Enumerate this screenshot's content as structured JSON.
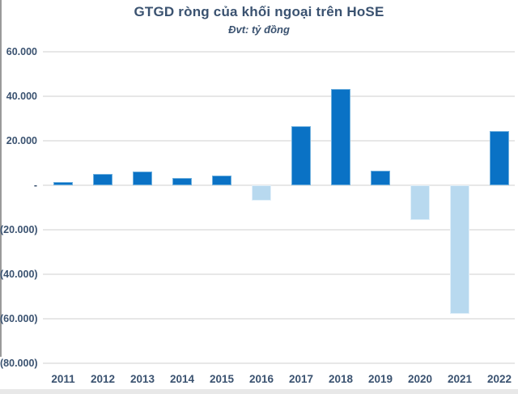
{
  "title": "GTGD ròng của khối ngoại trên HoSE",
  "subtitle": "Đvt: tỷ đồng",
  "colors": {
    "positive_bar": "#0a72c5",
    "negative_bar": "#b8d9ef",
    "text": "#3a5270",
    "gridline": "#e7e7e7"
  },
  "chart_data": {
    "type": "bar",
    "title": "GTGD ròng của khối ngoại trên HoSE",
    "subtitle": "Đvt: tỷ đồng",
    "unit_label": "tỷ đồng",
    "categories": [
      "2011",
      "2012",
      "2013",
      "2014",
      "2015",
      "2016",
      "2017",
      "2018",
      "2019",
      "2020",
      "2021",
      "2022"
    ],
    "values": [
      1500,
      5000,
      6100,
      3200,
      4300,
      -7000,
      26500,
      43200,
      6600,
      -15800,
      -57800,
      24500
    ],
    "xlabel": "",
    "ylabel": "tỷ đồng",
    "ylim": [
      -80000,
      60000
    ],
    "ytick_values": [
      60000,
      40000,
      20000,
      0,
      -20000,
      -40000,
      -60000,
      -80000
    ],
    "ytick_labels": [
      "60.000",
      "40.000",
      "20.000",
      "-",
      "(20.000)",
      "(40.000)",
      "(60.000)",
      "(80.000)"
    ],
    "grid": true,
    "legend": false,
    "bar_color_rule": "positive bars dark blue, negative bars light blue"
  }
}
